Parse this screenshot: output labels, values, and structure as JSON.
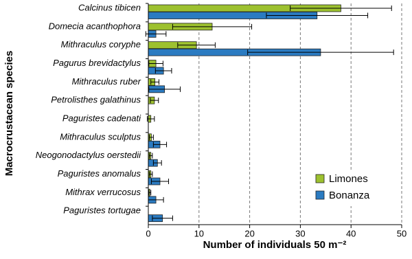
{
  "chart_data": {
    "type": "hbar",
    "xlabel": "Number of individuals 50 m⁻²",
    "ylabel": "Macrocrustacean species",
    "categories": [
      "Calcinus tibicen",
      "Domecia acanthophora",
      "Mithraculus coryphe",
      "Pagurus brevidactylus",
      "Mithraculus ruber",
      "Petrolisthes galathinus",
      "Paguristes cadenati",
      "Mithraculus sculptus",
      "Neogonodactylus oerstedii",
      "Paguristes anomalus",
      "Mithrax verrucosus",
      "Paguristes tortugae"
    ],
    "series": [
      {
        "name": "Limones",
        "color": "#9dc12f",
        "values": [
          38,
          12.6,
          9.5,
          1.5,
          1.3,
          1.2,
          0.5,
          0.6,
          0.5,
          0.5,
          0.3,
          0
        ],
        "errors": [
          10,
          7.8,
          3.7,
          1.4,
          0.8,
          0.8,
          0.7,
          0.4,
          0.3,
          0.3,
          0.2,
          null
        ]
      },
      {
        "name": "Bonanza",
        "color": "#2b7bc1",
        "values": [
          33.3,
          1.5,
          34,
          3,
          3.2,
          0,
          0,
          2.3,
          1.8,
          2.3,
          1.5,
          2.8
        ],
        "errors": [
          10,
          2,
          14.4,
          1.6,
          3.1,
          null,
          null,
          1.3,
          0.8,
          1.7,
          1.5,
          2
        ]
      }
    ],
    "xlim": [
      0,
      50
    ],
    "xticks": [
      0,
      10,
      20,
      30,
      40,
      50
    ],
    "grid": true,
    "legend": "lower right"
  }
}
